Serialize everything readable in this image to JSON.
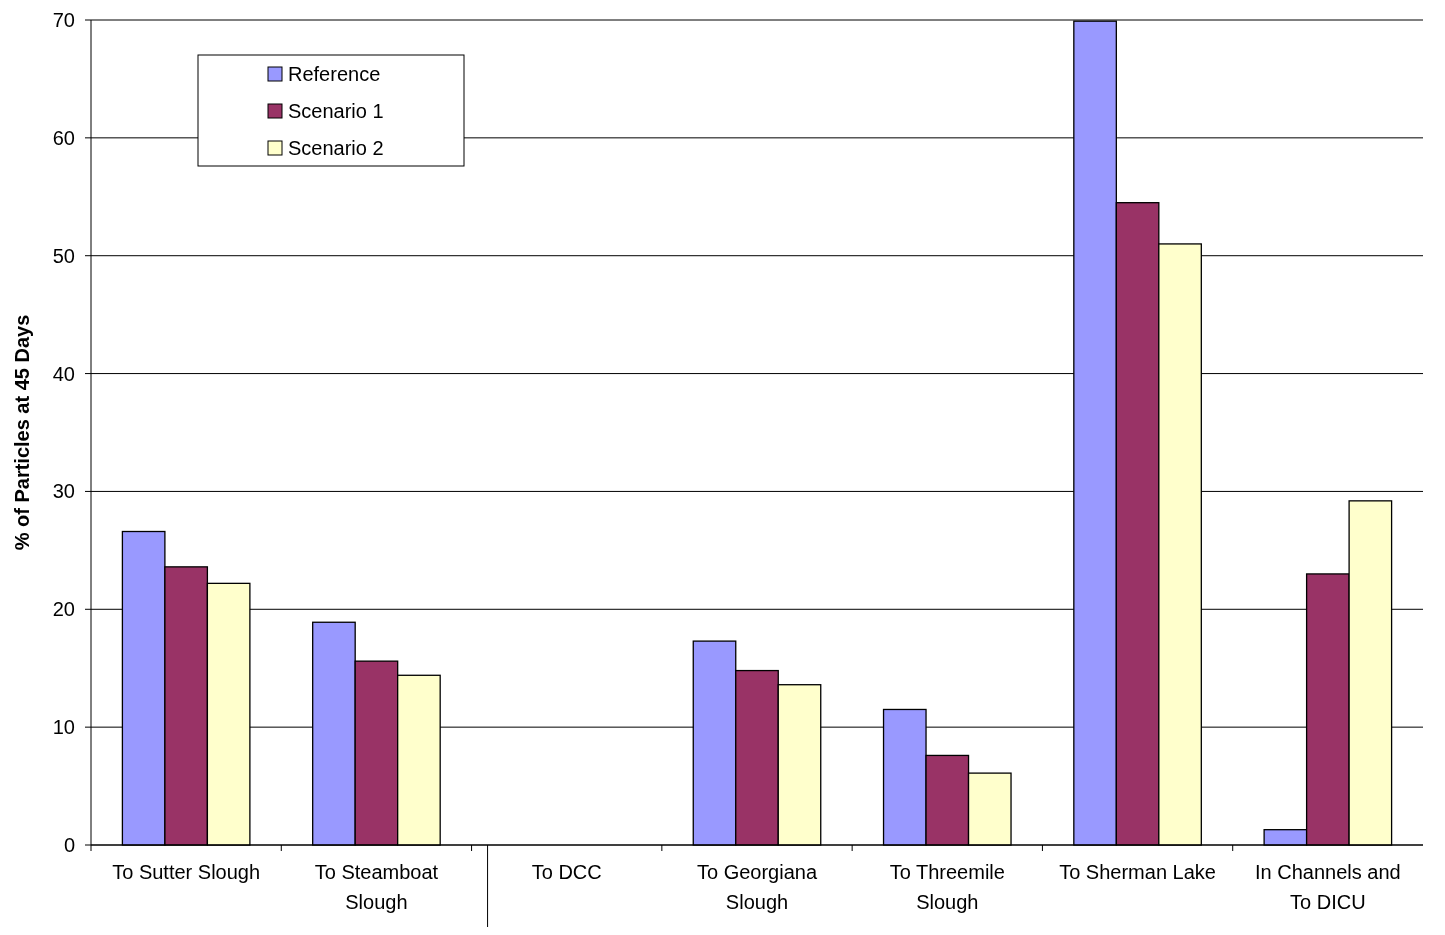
{
  "chart_data": {
    "type": "bar",
    "ylabel": "% of Particles at 45 Days",
    "categories": [
      "To Sutter Slough",
      "To Steamboat Slough",
      "To DCC",
      "To Georgiana Slough",
      "To Threemile Slough",
      "To Sherman Lake",
      "In Channels and To DICU"
    ],
    "series": [
      {
        "name": "Reference",
        "color": "#9999ff",
        "values": [
          26.6,
          18.9,
          0,
          17.3,
          11.5,
          69.9,
          1.3
        ]
      },
      {
        "name": "Scenario 1",
        "color": "#993366",
        "values": [
          23.6,
          15.6,
          0,
          14.8,
          7.6,
          54.5,
          23.0
        ]
      },
      {
        "name": "Scenario 2",
        "color": "#ffffcc",
        "values": [
          22.2,
          14.4,
          0,
          13.6,
          6.1,
          51.0,
          29.2
        ]
      }
    ],
    "ylim": [
      0,
      70
    ],
    "yticks": [
      0,
      10,
      20,
      30,
      40,
      50,
      60,
      70
    ],
    "grid": "y",
    "legend": "top left"
  }
}
